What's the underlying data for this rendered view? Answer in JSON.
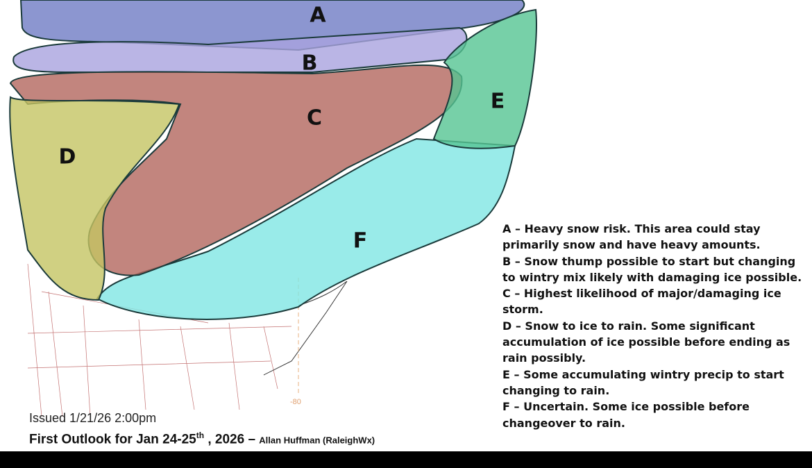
{
  "map": {
    "regions": [
      {
        "label": "A",
        "color": "#6f7cc4"
      },
      {
        "label": "B",
        "color": "#a9a3de"
      },
      {
        "label": "C",
        "color": "#b3675e"
      },
      {
        "label": "D",
        "color": "#c4c463"
      },
      {
        "label": "E",
        "color": "#55c492"
      },
      {
        "label": "F",
        "color": "#80e6e4"
      }
    ],
    "longitude_label": "-80"
  },
  "legend": [
    "A – Heavy snow risk. This area could stay primarily snow and have heavy amounts.",
    "B – Snow thump possible to start but changing to wintry mix likely with damaging ice possible.",
    "C – Highest likelihood of major/damaging ice storm.",
    "D – Snow to ice to rain. Some significant accumulation of ice possible before ending as rain possibly.",
    "E – Some accumulating wintry precip to start changing to rain.",
    "F – Uncertain. Some ice possible before changeover to rain."
  ],
  "footer": {
    "issued": "Issued 1/21/26 2:00pm",
    "title": "First Outlook for Jan 24-25",
    "title_sup": "th",
    "title_end": " , 2026 –",
    "author": "Allan Huffman (RaleighWx)"
  }
}
